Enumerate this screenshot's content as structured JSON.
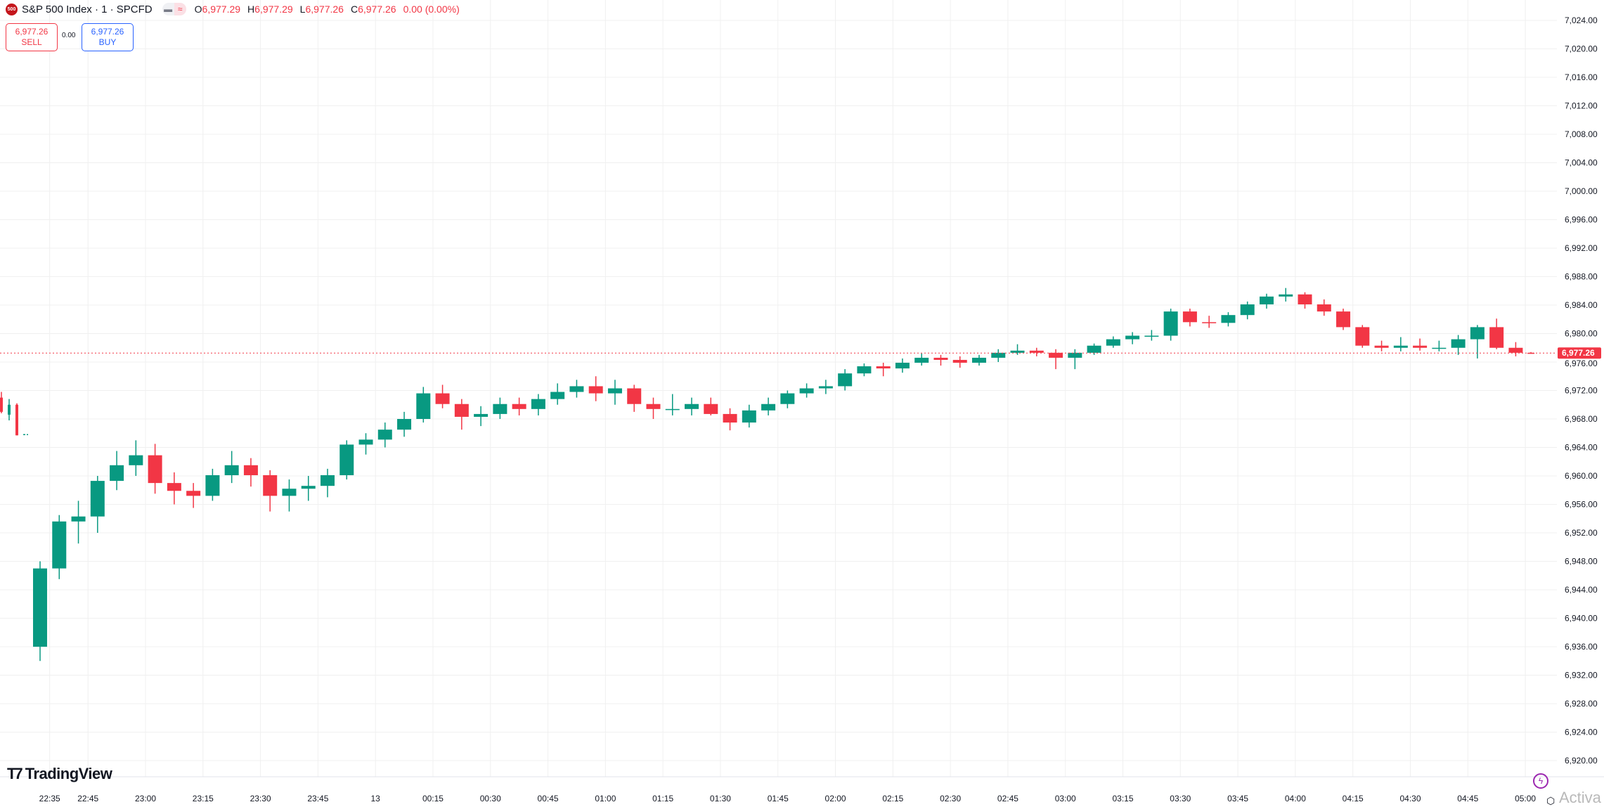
{
  "header": {
    "logo_text": "500",
    "title": "S&P 500 Index · 1 · SPCFD",
    "o_label": "O",
    "o_value": "6,977.29",
    "h_label": "H",
    "h_value": "6,977.29",
    "l_label": "L",
    "l_value": "6,977.26",
    "c_label": "C",
    "c_value": "6,977.26",
    "change": "0.00 (0.00%)"
  },
  "trade": {
    "sell_price": "6,977.26",
    "sell_label": "SELL",
    "spread": "0.00",
    "buy_price": "6,977.26",
    "buy_label": "BUY"
  },
  "branding": {
    "logo_text": "TradingView"
  },
  "watermark": "Activa",
  "colors": {
    "up": "#089981",
    "down": "#f23645",
    "grid": "#f0f0f0",
    "price_line": "#f23645",
    "sell": "#f23645",
    "buy": "#2962ff"
  },
  "icons": [
    "bolt-icon",
    "settings-icon",
    "chart-style-icon",
    "compare-icon"
  ],
  "chart_data": {
    "type": "candlestick",
    "interval_label": "1",
    "ylim": [
      6918,
      7026
    ],
    "grid": true,
    "current_price": 6977.26,
    "current_price_label": "6,977.26",
    "y_ticks": [
      "7,024.00",
      "7,020.00",
      "7,016.00",
      "7,012.00",
      "7,008.00",
      "7,004.00",
      "7,000.00",
      "6,996.00",
      "6,992.00",
      "6,988.00",
      "6,984.00",
      "6,980.00",
      "6,976.00",
      "6,972.00",
      "6,968.00",
      "6,964.00",
      "6,960.00",
      "6,956.00",
      "6,952.00",
      "6,948.00",
      "6,944.00",
      "6,940.00",
      "6,936.00",
      "6,932.00",
      "6,928.00",
      "6,924.00",
      "6,920.00"
    ],
    "x_ticks": [
      {
        "label": "22:35",
        "time": "22:35"
      },
      {
        "label": "22:45",
        "time": "22:45"
      },
      {
        "label": "23:00",
        "time": "23:00"
      },
      {
        "label": "23:15",
        "time": "23:15"
      },
      {
        "label": "23:30",
        "time": "23:30"
      },
      {
        "label": "23:45",
        "time": "23:45"
      },
      {
        "label": "13",
        "time": "00:00"
      },
      {
        "label": "00:15",
        "time": "00:15"
      },
      {
        "label": "00:30",
        "time": "00:30"
      },
      {
        "label": "00:45",
        "time": "00:45"
      },
      {
        "label": "01:00",
        "time": "01:00"
      },
      {
        "label": "01:15",
        "time": "01:15"
      },
      {
        "label": "01:30",
        "time": "01:30"
      },
      {
        "label": "01:45",
        "time": "01:45"
      },
      {
        "label": "02:00",
        "time": "02:00"
      },
      {
        "label": "02:15",
        "time": "02:15"
      },
      {
        "label": "02:30",
        "time": "02:30"
      },
      {
        "label": "02:45",
        "time": "02:45"
      },
      {
        "label": "03:00",
        "time": "03:00"
      },
      {
        "label": "03:15",
        "time": "03:15"
      },
      {
        "label": "03:30",
        "time": "03:30"
      },
      {
        "label": "03:45",
        "time": "03:45"
      },
      {
        "label": "04:00",
        "time": "04:00"
      },
      {
        "label": "04:15",
        "time": "04:15"
      },
      {
        "label": "04:30",
        "time": "04:30"
      },
      {
        "label": "04:45",
        "time": "04:45"
      },
      {
        "label": "05:00",
        "time": "05:00"
      }
    ],
    "prior_session_candles": [
      [
        6971.0,
        6971.8,
        6968.8,
        6969.0
      ],
      [
        6968.6,
        6970.8,
        6967.8,
        6970.0
      ],
      [
        6970.0,
        6970.2,
        6965.7,
        6965.7
      ]
    ],
    "candles_5min": [
      [
        "22:30",
        6936.0,
        6948.0,
        6934.0,
        6947.0
      ],
      [
        "22:35",
        6947.0,
        6954.5,
        6945.5,
        6953.6
      ],
      [
        "22:40",
        6953.6,
        6956.5,
        6950.5,
        6954.3
      ],
      [
        "22:45",
        6954.3,
        6960.0,
        6952.0,
        6959.3
      ],
      [
        "22:50",
        6959.3,
        6963.5,
        6958.0,
        6961.5
      ],
      [
        "22:55",
        6961.5,
        6965.0,
        6960.0,
        6962.9
      ],
      [
        "23:00",
        6962.9,
        6964.5,
        6957.5,
        6959.0
      ],
      [
        "23:05",
        6959.0,
        6960.5,
        6956.0,
        6957.9
      ],
      [
        "23:10",
        6957.9,
        6959.0,
        6955.5,
        6957.2
      ],
      [
        "23:15",
        6957.2,
        6961.0,
        6956.5,
        6960.1
      ],
      [
        "23:20",
        6960.1,
        6963.5,
        6959.0,
        6961.5
      ],
      [
        "23:25",
        6961.5,
        6962.5,
        6958.5,
        6960.1
      ],
      [
        "23:30",
        6960.1,
        6960.8,
        6955.0,
        6957.2
      ],
      [
        "23:35",
        6957.2,
        6959.5,
        6955.0,
        6958.2
      ],
      [
        "23:40",
        6958.2,
        6960.0,
        6956.5,
        6958.6
      ],
      [
        "23:45",
        6958.6,
        6961.0,
        6957.0,
        6960.1
      ],
      [
        "23:50",
        6960.1,
        6965.0,
        6959.5,
        6964.4
      ],
      [
        "23:55",
        6964.4,
        6966.0,
        6963.0,
        6965.1
      ],
      [
        "00:00",
        6965.1,
        6967.5,
        6964.0,
        6966.5
      ],
      [
        "00:05",
        6966.5,
        6969.0,
        6965.5,
        6968.0
      ],
      [
        "00:10",
        6968.0,
        6972.5,
        6967.5,
        6971.6
      ],
      [
        "00:15",
        6971.6,
        6972.8,
        6969.5,
        6970.1
      ],
      [
        "00:20",
        6970.1,
        6970.8,
        6966.5,
        6968.3
      ],
      [
        "00:25",
        6968.3,
        6969.8,
        6967.0,
        6968.7
      ],
      [
        "00:30",
        6968.7,
        6971.0,
        6968.0,
        6970.1
      ],
      [
        "00:35",
        6970.1,
        6971.0,
        6968.5,
        6969.4
      ],
      [
        "00:40",
        6969.4,
        6971.5,
        6968.5,
        6970.8
      ],
      [
        "00:45",
        6970.8,
        6973.0,
        6970.0,
        6971.8
      ],
      [
        "00:50",
        6971.8,
        6973.5,
        6971.0,
        6972.6
      ],
      [
        "00:55",
        6972.6,
        6974.0,
        6970.5,
        6971.6
      ],
      [
        "01:00",
        6971.6,
        6973.5,
        6970.0,
        6972.3
      ],
      [
        "01:05",
        6972.3,
        6972.8,
        6969.0,
        6970.1
      ],
      [
        "01:10",
        6970.1,
        6971.0,
        6968.0,
        6969.4
      ],
      [
        "01:15",
        6969.4,
        6971.5,
        6968.5,
        6969.4
      ],
      [
        "01:20",
        6969.4,
        6971.0,
        6968.5,
        6970.1
      ],
      [
        "01:25",
        6970.1,
        6971.0,
        6968.5,
        6968.7
      ],
      [
        "01:30",
        6968.7,
        6969.5,
        6966.4,
        6967.5
      ],
      [
        "01:35",
        6967.5,
        6970.0,
        6966.8,
        6969.2
      ],
      [
        "01:40",
        6969.2,
        6971.0,
        6968.5,
        6970.1
      ],
      [
        "01:45",
        6970.1,
        6972.0,
        6969.5,
        6971.6
      ],
      [
        "01:50",
        6971.6,
        6973.0,
        6971.0,
        6972.3
      ],
      [
        "01:55",
        6972.3,
        6973.5,
        6971.5,
        6972.6
      ],
      [
        "02:00",
        6972.6,
        6975.0,
        6972.0,
        6974.4
      ],
      [
        "02:05",
        6974.4,
        6975.8,
        6974.0,
        6975.4
      ],
      [
        "02:10",
        6975.4,
        6975.9,
        6974.0,
        6975.1
      ],
      [
        "02:15",
        6975.1,
        6976.5,
        6974.5,
        6975.9
      ],
      [
        "02:20",
        6975.9,
        6977.2,
        6975.5,
        6976.6
      ],
      [
        "02:25",
        6976.6,
        6977.0,
        6975.5,
        6976.3
      ],
      [
        "02:30",
        6976.3,
        6976.8,
        6975.2,
        6975.9
      ],
      [
        "02:35",
        6975.9,
        6977.0,
        6975.5,
        6976.6
      ],
      [
        "02:40",
        6976.6,
        6977.8,
        6976.0,
        6977.3
      ],
      [
        "02:45",
        6977.3,
        6978.5,
        6977.0,
        6977.6
      ],
      [
        "02:50",
        6977.6,
        6978.0,
        6976.8,
        6977.3
      ],
      [
        "02:55",
        6977.3,
        6977.8,
        6975.0,
        6976.6
      ],
      [
        "03:00",
        6976.6,
        6977.8,
        6975.0,
        6977.3
      ],
      [
        "03:05",
        6977.3,
        6978.6,
        6977.0,
        6978.3
      ],
      [
        "03:10",
        6978.3,
        6979.6,
        6978.0,
        6979.2
      ],
      [
        "03:15",
        6979.2,
        6980.2,
        6978.5,
        6979.7
      ],
      [
        "03:20",
        6979.7,
        6980.5,
        6979.0,
        6979.7
      ],
      [
        "03:25",
        6979.7,
        6983.5,
        6979.0,
        6983.1
      ],
      [
        "03:30",
        6983.1,
        6983.5,
        6981.0,
        6981.6
      ],
      [
        "03:35",
        6981.6,
        6982.5,
        6980.8,
        6981.5
      ],
      [
        "03:40",
        6981.5,
        6983.0,
        6981.0,
        6982.6
      ],
      [
        "03:45",
        6982.6,
        6984.5,
        6982.0,
        6984.1
      ],
      [
        "03:50",
        6984.1,
        6985.6,
        6983.5,
        6985.2
      ],
      [
        "03:55",
        6985.2,
        6986.4,
        6984.5,
        6985.5
      ],
      [
        "04:00",
        6985.5,
        6985.8,
        6983.5,
        6984.1
      ],
      [
        "04:05",
        6984.1,
        6984.8,
        6982.5,
        6983.1
      ],
      [
        "04:10",
        6983.1,
        6983.5,
        6980.5,
        6980.9
      ],
      [
        "04:15",
        6980.9,
        6981.2,
        6978.0,
        6978.3
      ],
      [
        "04:20",
        6978.3,
        6979.0,
        6977.5,
        6978.0
      ],
      [
        "04:25",
        6978.0,
        6979.5,
        6977.5,
        6978.3
      ],
      [
        "04:30",
        6978.3,
        6979.3,
        6977.6,
        6978.0
      ],
      [
        "04:35",
        6978.0,
        6979.0,
        6977.5,
        6978.0
      ],
      [
        "04:40",
        6978.0,
        6979.8,
        6977.0,
        6979.2
      ],
      [
        "04:45",
        6979.2,
        6981.2,
        6976.5,
        6980.9
      ],
      [
        "04:50",
        6980.9,
        6982.1,
        6977.8,
        6978.0
      ],
      [
        "04:55",
        6978.0,
        6978.8,
        6976.8,
        6977.3
      ],
      [
        "05:00",
        6977.3,
        6977.4,
        6977.2,
        6977.26
      ]
    ]
  }
}
